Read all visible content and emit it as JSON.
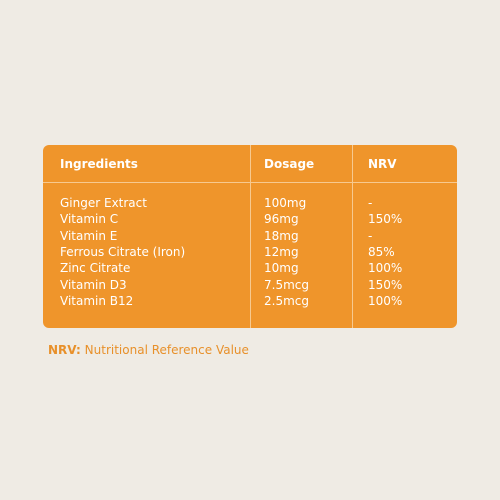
{
  "table": {
    "headers": [
      "Ingredients",
      "Dosage",
      "NRV"
    ],
    "rows": [
      [
        "Ginger Extract",
        "100mg",
        "-"
      ],
      [
        "Vitamin C",
        "96mg",
        "150%"
      ],
      [
        "Vitamin E",
        "18mg",
        "-"
      ],
      [
        "Ferrous Citrate (Iron)",
        "12mg",
        "85%"
      ],
      [
        "Zinc Citrate",
        "10mg",
        "100%"
      ],
      [
        "Vitamin D3",
        "7.5mcg",
        "150%"
      ],
      [
        "Vitamin B12",
        "2.5mcg",
        "100%"
      ]
    ]
  },
  "footnote": {
    "term": "NRV:",
    "text": "Nutritional Reference Value"
  }
}
